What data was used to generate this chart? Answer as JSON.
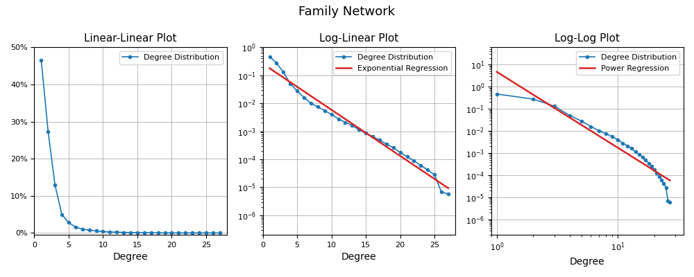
{
  "title": "Family Network",
  "degrees": [
    1,
    2,
    3,
    4,
    5,
    6,
    7,
    8,
    9,
    10,
    11,
    12,
    13,
    14,
    15,
    16,
    17,
    18,
    19,
    20,
    21,
    22,
    23,
    24,
    25,
    26,
    27
  ],
  "probabilities": [
    0.466,
    0.274,
    0.13,
    0.05,
    0.028,
    0.016,
    0.01,
    0.0075,
    0.0055,
    0.004,
    0.0028,
    0.0021,
    0.0016,
    0.00115,
    0.00085,
    0.00065,
    0.00048,
    0.00035,
    0.00026,
    0.000175,
    0.000125,
    8.8e-05,
    6e-05,
    4.2e-05,
    2.8e-05,
    6.8e-06,
    5.8e-06
  ],
  "exp_fit_a": 0.85,
  "exp_fit_b": -0.48,
  "power_fit_a": 25.0,
  "power_fit_gamma": -3.8,
  "subplot_titles": [
    "Linear-Linear Plot",
    "Log-Linear Plot",
    "Log-Log Plot"
  ],
  "xlabel": "Degree",
  "line_color": "#1f77b4",
  "reg_color": "#d62728",
  "legend_dd": "Degree Distribution",
  "legend_exp": "Exponential Regression",
  "legend_pow": "Power Regression",
  "grid_color": "#b0b0b0"
}
